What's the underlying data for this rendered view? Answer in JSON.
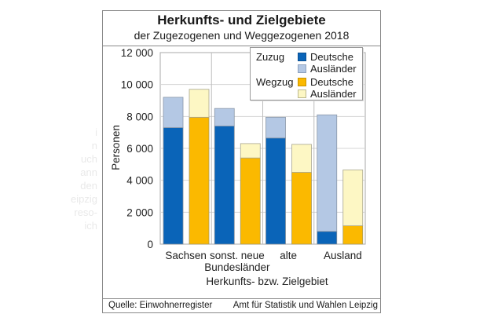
{
  "background_fragments": [
    "i",
    "n",
    "uch",
    "ann",
    "den",
    "eipzig",
    "reso-",
    "ich"
  ],
  "chart_data": {
    "type": "bar",
    "stacked": true,
    "title": "Herkunfts- und Zielgebiete",
    "subtitle": "der Zugezogenen und Weggezogenen 2018",
    "xlabel": "Herkunfts- bzw. Zielgebiet",
    "ylabel": "Personen",
    "ylim": [
      0,
      12000
    ],
    "yticks": [
      0,
      2000,
      4000,
      6000,
      8000,
      10000,
      12000
    ],
    "ytick_labels": [
      "0",
      "2 000",
      "4 000",
      "6 000",
      "8 000",
      "10 000",
      "12 000"
    ],
    "grid": true,
    "categories": [
      "Sachsen",
      "sonst. neue Bundesländer",
      "alte",
      "Ausland"
    ],
    "category_labels": [
      [
        "Sachsen"
      ],
      [
        "sonst. neue",
        "Bundesländer"
      ],
      [
        "alte"
      ],
      [
        "Ausland"
      ]
    ],
    "groups": [
      {
        "name": "Zuzug",
        "series": [
          {
            "name": "Deutsche",
            "color": "#0a64b8",
            "values": [
              7300,
              7400,
              6650,
              800
            ]
          },
          {
            "name": "Ausländer",
            "color": "#b4c8e4",
            "values": [
              1900,
              1100,
              1300,
              7300
            ]
          }
        ]
      },
      {
        "name": "Wegzug",
        "series": [
          {
            "name": "Deutsche",
            "color": "#fbb900",
            "values": [
              7950,
              5400,
              4500,
              1150
            ]
          },
          {
            "name": "Ausländer",
            "color": "#fdf7c4",
            "values": [
              1750,
              900,
              1750,
              3500
            ]
          }
        ]
      }
    ],
    "legend": {
      "placement": "top-right",
      "entries": [
        {
          "group": "Zuzug",
          "label": "Deutsche",
          "color": "#0a64b8"
        },
        {
          "group": "",
          "label": "Ausländer",
          "color": "#b4c8e4"
        },
        {
          "group": "Wegzug",
          "label": "Deutsche",
          "color": "#fbb900"
        },
        {
          "group": "",
          "label": "Ausländer",
          "color": "#fdf7c4"
        }
      ]
    }
  },
  "footer": {
    "source": "Quelle: Einwohnerregister",
    "organization": "Amt für Statistik und Wahlen Leipzig"
  }
}
